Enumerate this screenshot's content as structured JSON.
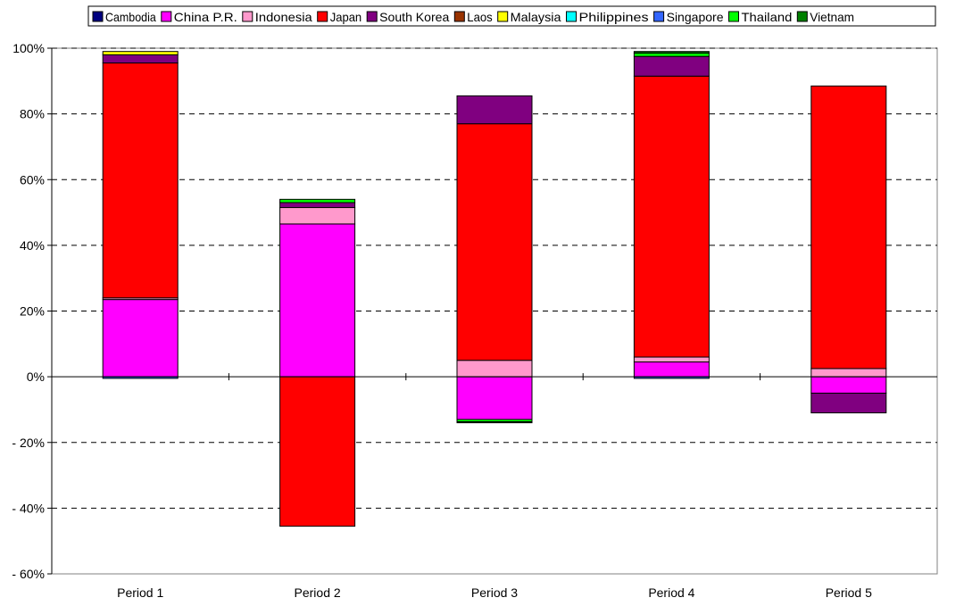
{
  "chart_data": {
    "type": "bar",
    "stacked": true,
    "title": "",
    "xlabel": "",
    "ylabel": "",
    "categories": [
      "Period 1",
      "Period 2",
      "Period 3",
      "Period 4",
      "Period 5"
    ],
    "ylim": [
      -60,
      100
    ],
    "yticks": [
      100,
      80,
      60,
      40,
      20,
      0,
      -20,
      -40,
      -60
    ],
    "ytick_labels": [
      "100%",
      "80%",
      "60%",
      "40%",
      "20%",
      "0%",
      "- 20%",
      "- 40%",
      "- 60%"
    ],
    "grid": "horizontal-dashed",
    "legend_position": "top",
    "series": [
      {
        "name": "Cambodia",
        "color": "#000080",
        "values": [
          0,
          0,
          0,
          0,
          0
        ]
      },
      {
        "name": "China P.R.",
        "color": "#ff00ff",
        "values": [
          23.5,
          46.5,
          -13,
          4.5,
          -5
        ]
      },
      {
        "name": "Indonesia",
        "color": "#ff99cc",
        "values": [
          0.5,
          5,
          5,
          1.5,
          2.5
        ]
      },
      {
        "name": "Japan",
        "color": "#ff0000",
        "values": [
          71.5,
          -45.5,
          72,
          85.5,
          86
        ]
      },
      {
        "name": "South Korea",
        "color": "#800080",
        "values": [
          2.5,
          1.5,
          8.5,
          6,
          -6
        ]
      },
      {
        "name": "Laos",
        "color": "#993300",
        "values": [
          0,
          0,
          0,
          0,
          0
        ]
      },
      {
        "name": "Malaysia",
        "color": "#ffff00",
        "values": [
          1,
          0,
          0,
          0,
          0
        ]
      },
      {
        "name": "Philippines",
        "color": "#00ffff",
        "values": [
          0,
          0,
          0,
          0,
          0
        ]
      },
      {
        "name": "Singapore",
        "color": "#3366ff",
        "values": [
          -0.5,
          0,
          0,
          -0.5,
          0
        ]
      },
      {
        "name": "Thailand",
        "color": "#00ff00",
        "values": [
          0,
          1,
          -0.7,
          1,
          0
        ]
      },
      {
        "name": "Vietnam",
        "color": "#008000",
        "values": [
          0,
          0,
          -0.3,
          0.5,
          0
        ]
      }
    ]
  }
}
